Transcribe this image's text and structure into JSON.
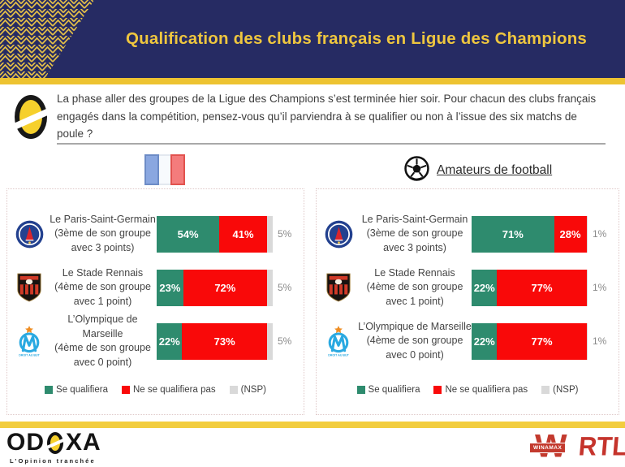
{
  "header": {
    "title": "Qualification des clubs français en Ligue des Champions"
  },
  "question": {
    "text": "La phase aller des groupes de la Ligue des Champions s’est terminée hier soir. Pour chacun des clubs français engagés dans la compétition, pensez-vous qu’il parviendra à se qualifier ou non à l’issue des six matchs de poule ?"
  },
  "colors": {
    "navy": "#262b63",
    "gold": "#eec63f",
    "green": "#2e8b6e",
    "red": "#f90909",
    "nsp_gray": "#d9d9d9",
    "footer_logo_red": "#c33a2e"
  },
  "panels": [
    {
      "header_icon": "french-flag-icon",
      "header_label": "",
      "rows": [
        {
          "logo": "psg-logo",
          "club": "Le Paris-Saint-Germain",
          "detail": "(3ème de son groupe avec 3 points)",
          "green": 54,
          "red": 41,
          "nsp": 5,
          "green_label": "54%",
          "red_label": "41%",
          "nsp_label": "5%"
        },
        {
          "logo": "stade-rennais-logo",
          "club": "Le Stade Rennais",
          "detail": "(4ème de son groupe avec 1 point)",
          "green": 23,
          "red": 72,
          "nsp": 5,
          "green_label": "23%",
          "red_label": "72%",
          "nsp_label": "5%"
        },
        {
          "logo": "om-logo",
          "club": "L’Olympique de Marseille",
          "detail": "(4ème de son groupe avec 0 point)",
          "green": 22,
          "red": 73,
          "nsp": 5,
          "green_label": "22%",
          "red_label": "73%",
          "nsp_label": "5%"
        }
      ],
      "legend": {
        "green": "Se qualifiera",
        "red": "Ne se qualifiera pas",
        "nsp": "(NSP)"
      }
    },
    {
      "header_icon": "soccer-ball-icon",
      "header_label": "Amateurs de football",
      "rows": [
        {
          "logo": "psg-logo",
          "club": "Le Paris-Saint-Germain",
          "detail": "(3ème de son groupe avec 3 points)",
          "green": 71,
          "red": 28,
          "nsp": 1,
          "green_label": "71%",
          "red_label": "28%",
          "nsp_label": "1%"
        },
        {
          "logo": "stade-rennais-logo",
          "club": "Le Stade Rennais",
          "detail": "(4ème de son groupe avec 1 point)",
          "green": 22,
          "red": 77,
          "nsp": 1,
          "green_label": "22%",
          "red_label": "77%",
          "nsp_label": "1%"
        },
        {
          "logo": "om-logo",
          "club": "L’Olympique de Marseille",
          "detail": "(4ème de son groupe avec 0 point)",
          "green": 22,
          "red": 77,
          "nsp": 1,
          "green_label": "22%",
          "red_label": "77%",
          "nsp_label": "1%"
        }
      ],
      "legend": {
        "green": "Se qualifiera",
        "red": "Ne se qualifiera pas",
        "nsp": "(NSP)"
      }
    }
  ],
  "footer": {
    "odoxa_prefix": "OD",
    "odoxa_suffix": "XA",
    "odoxa_tagline": "L’Opinion tranchée",
    "winamax_label": "WINAMAX",
    "winamax_letter": "W",
    "rtl_label": "RTL"
  },
  "chart_data": [
    {
      "type": "bar",
      "orientation": "horizontal",
      "stacked": true,
      "title": "",
      "audience": "french-flag-icon",
      "categories": [
        "Le Paris-Saint-Germain (3ème de son groupe avec 3 points)",
        "Le Stade Rennais (4ème de son groupe avec 1 point)",
        "L’Olympique de Marseille (4ème de son groupe avec 0 point)"
      ],
      "series": [
        {
          "name": "Se qualifiera",
          "color": "#2e8b6e",
          "values": [
            54,
            23,
            22
          ]
        },
        {
          "name": "Ne se qualifiera pas",
          "color": "#f90909",
          "values": [
            41,
            72,
            73
          ]
        },
        {
          "name": "(NSP)",
          "color": "#d9d9d9",
          "values": [
            5,
            5,
            5
          ]
        }
      ],
      "unit": "%",
      "xlim": [
        0,
        100
      ],
      "grid": false,
      "legend_position": "bottom"
    },
    {
      "type": "bar",
      "orientation": "horizontal",
      "stacked": true,
      "title": "Amateurs de football",
      "audience": "soccer-ball-icon",
      "categories": [
        "Le Paris-Saint-Germain (3ème de son groupe avec 3 points)",
        "Le Stade Rennais (4ème de son groupe avec 1 point)",
        "L’Olympique de Marseille (4ème de son groupe avec 0 point)"
      ],
      "series": [
        {
          "name": "Se qualifiera",
          "color": "#2e8b6e",
          "values": [
            71,
            22,
            22
          ]
        },
        {
          "name": "Ne se qualifiera pas",
          "color": "#f90909",
          "values": [
            28,
            77,
            77
          ]
        },
        {
          "name": "(NSP)",
          "color": "#d9d9d9",
          "values": [
            1,
            1,
            1
          ]
        }
      ],
      "unit": "%",
      "xlim": [
        0,
        100
      ],
      "grid": false,
      "legend_position": "bottom"
    }
  ]
}
